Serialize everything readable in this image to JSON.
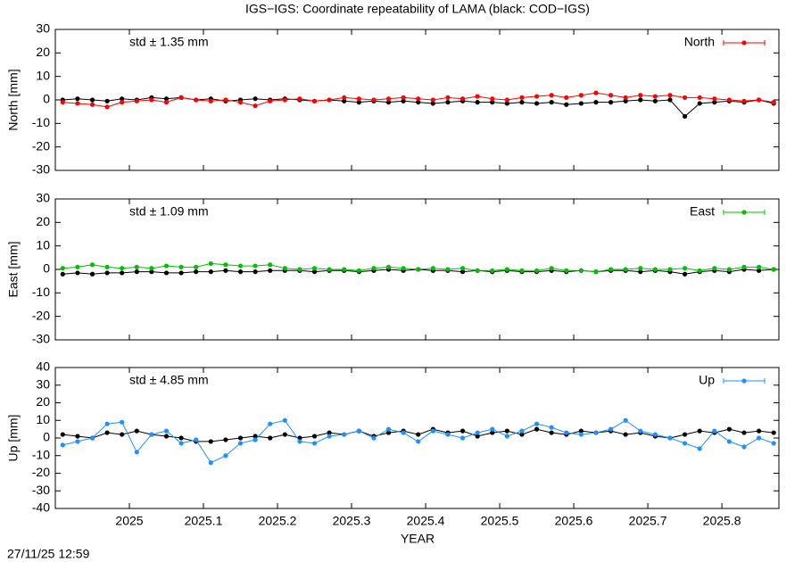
{
  "title": "IGS−IGS: Coordinate repeatability of LAMA (black: COD−IGS)",
  "timestamp": "27/11/25 12:59",
  "chart_data": [
    {
      "type": "line",
      "ylabel": "North [mm]",
      "annotation": "std ± 1.35 mm",
      "legend": "top right",
      "xlim": [
        2024.9,
        2025.877
      ],
      "xticks": [
        2025,
        2025.1,
        2025.2,
        2025.3,
        2025.4,
        2025.5,
        2025.6,
        2025.7,
        2025.8
      ],
      "ylim": [
        -30,
        30
      ],
      "yticks": [
        -30,
        -20,
        -10,
        0,
        10,
        20,
        30
      ],
      "x": [
        2024.91,
        2024.93,
        2024.95,
        2024.97,
        2024.99,
        2025.01,
        2025.03,
        2025.05,
        2025.07,
        2025.09,
        2025.11,
        2025.13,
        2025.15,
        2025.17,
        2025.19,
        2025.21,
        2025.23,
        2025.25,
        2025.27,
        2025.29,
        2025.31,
        2025.33,
        2025.35,
        2025.37,
        2025.39,
        2025.41,
        2025.43,
        2025.45,
        2025.47,
        2025.49,
        2025.51,
        2025.53,
        2025.55,
        2025.57,
        2025.59,
        2025.61,
        2025.63,
        2025.65,
        2025.67,
        2025.69,
        2025.71,
        2025.73,
        2025.75,
        2025.77,
        2025.79,
        2025.81,
        2025.83,
        2025.85,
        2025.87
      ],
      "series": [
        {
          "color": "#000000",
          "values": [
            0,
            0.5,
            0,
            -0.5,
            0.5,
            0,
            1,
            0.5,
            1,
            0,
            0.5,
            -0.5,
            0,
            0.5,
            0,
            0.5,
            0,
            -0.5,
            0,
            -0.5,
            -1,
            -0.5,
            -1,
            -0.5,
            -1,
            -1.5,
            -1,
            -0.5,
            -1,
            -1,
            -1.5,
            -1,
            -1.5,
            -1,
            -2,
            -1.5,
            -1,
            -1,
            -0.5,
            0,
            -0.5,
            0,
            -7,
            -1.5,
            -1,
            -0.5,
            -1,
            0,
            -1.5
          ]
        },
        {
          "name": "North",
          "color": "#ff0000",
          "values": [
            -1,
            -1.5,
            -2,
            -3,
            -1,
            -0.5,
            0,
            -1,
            1,
            0,
            -0.5,
            0,
            -1,
            -2.5,
            -0.5,
            0,
            0.5,
            -0.5,
            0,
            1,
            0.5,
            0,
            0.5,
            1,
            0.5,
            0,
            1,
            0.5,
            1.5,
            0.5,
            0,
            1,
            1.5,
            2,
            1,
            2,
            3,
            2,
            1,
            2,
            1.5,
            2,
            1,
            1,
            0.5,
            0,
            -0.5,
            0,
            -1
          ]
        }
      ]
    },
    {
      "type": "line",
      "ylabel": "East [mm]",
      "annotation": "std ± 1.09 mm",
      "legend": "top right",
      "xlim": [
        2024.9,
        2025.877
      ],
      "xticks": [
        2025,
        2025.1,
        2025.2,
        2025.3,
        2025.4,
        2025.5,
        2025.6,
        2025.7,
        2025.8
      ],
      "ylim": [
        -30,
        30
      ],
      "yticks": [
        -30,
        -20,
        -10,
        0,
        10,
        20,
        30
      ],
      "x": [
        2024.91,
        2024.93,
        2024.95,
        2024.97,
        2024.99,
        2025.01,
        2025.03,
        2025.05,
        2025.07,
        2025.09,
        2025.11,
        2025.13,
        2025.15,
        2025.17,
        2025.19,
        2025.21,
        2025.23,
        2025.25,
        2025.27,
        2025.29,
        2025.31,
        2025.33,
        2025.35,
        2025.37,
        2025.39,
        2025.41,
        2025.43,
        2025.45,
        2025.47,
        2025.49,
        2025.51,
        2025.53,
        2025.55,
        2025.57,
        2025.59,
        2025.61,
        2025.63,
        2025.65,
        2025.67,
        2025.69,
        2025.71,
        2025.73,
        2025.75,
        2025.77,
        2025.79,
        2025.81,
        2025.83,
        2025.85,
        2025.87
      ],
      "series": [
        {
          "color": "#000000",
          "values": [
            -2,
            -1.5,
            -2,
            -1.5,
            -1.5,
            -1,
            -1,
            -1.5,
            -1.5,
            -1,
            -1,
            -0.5,
            -1,
            -1,
            -0.5,
            -0.5,
            -0.5,
            -1,
            -0.5,
            -0.5,
            -1,
            -0.5,
            0,
            -0.5,
            0,
            -0.5,
            -0.5,
            -1,
            -0.5,
            -1,
            -0.5,
            -1,
            -1,
            -0.5,
            -1,
            -0.5,
            -1,
            -0.5,
            -0.5,
            -1,
            -0.5,
            -1,
            -2,
            -1,
            -0.5,
            -1,
            0,
            -0.5,
            0
          ]
        },
        {
          "name": "East",
          "color": "#00c000",
          "values": [
            0.5,
            1,
            2,
            1,
            0.5,
            1,
            0.5,
            1.5,
            1,
            1,
            2.5,
            2,
            1.5,
            1.5,
            2,
            0.5,
            0,
            0.5,
            0,
            0,
            -0.5,
            0.5,
            1,
            0.5,
            0,
            0.5,
            0,
            0.5,
            -0.5,
            -0.5,
            0,
            -0.5,
            -0.5,
            0.5,
            -0.5,
            -0.5,
            -1,
            0,
            0,
            0.5,
            0,
            0,
            0.5,
            -0.5,
            0.5,
            0,
            1,
            1,
            0
          ]
        }
      ]
    },
    {
      "type": "line",
      "ylabel": "Up [mm]",
      "xlabel": "YEAR",
      "annotation": "std ± 4.85 mm",
      "legend": "top right",
      "xlim": [
        2024.9,
        2025.877
      ],
      "xticks": [
        2025,
        2025.1,
        2025.2,
        2025.3,
        2025.4,
        2025.5,
        2025.6,
        2025.7,
        2025.8
      ],
      "ylim": [
        -40,
        40
      ],
      "yticks": [
        -40,
        -30,
        -20,
        -10,
        0,
        10,
        20,
        30,
        40
      ],
      "x": [
        2024.91,
        2024.93,
        2024.95,
        2024.97,
        2024.99,
        2025.01,
        2025.03,
        2025.05,
        2025.07,
        2025.09,
        2025.11,
        2025.13,
        2025.15,
        2025.17,
        2025.19,
        2025.21,
        2025.23,
        2025.25,
        2025.27,
        2025.29,
        2025.31,
        2025.33,
        2025.35,
        2025.37,
        2025.39,
        2025.41,
        2025.43,
        2025.45,
        2025.47,
        2025.49,
        2025.51,
        2025.53,
        2025.55,
        2025.57,
        2025.59,
        2025.61,
        2025.63,
        2025.65,
        2025.67,
        2025.69,
        2025.71,
        2025.73,
        2025.75,
        2025.77,
        2025.79,
        2025.81,
        2025.83,
        2025.85,
        2025.87
      ],
      "series": [
        {
          "color": "#000000",
          "values": [
            2,
            1,
            0,
            3,
            2,
            4,
            2,
            1,
            0,
            -2,
            -2,
            -1,
            0,
            1,
            0,
            2,
            0,
            1,
            3,
            2,
            4,
            1,
            3,
            4,
            2,
            5,
            3,
            4,
            1,
            3,
            4,
            2,
            5,
            3,
            2,
            4,
            3,
            4,
            2,
            3,
            1,
            0,
            2,
            4,
            3,
            5,
            3,
            4,
            3
          ]
        },
        {
          "name": "Up",
          "color": "#1e90ff",
          "values": [
            -4,
            -2,
            0,
            8,
            9,
            -8,
            2,
            4,
            -3,
            -1,
            -14,
            -10,
            -3,
            -1,
            8,
            10,
            -2,
            -3,
            1,
            2,
            4,
            0,
            5,
            3,
            -2,
            4,
            2,
            0,
            3,
            5,
            1,
            4,
            8,
            6,
            3,
            2,
            3,
            5,
            10,
            4,
            2,
            0,
            -3,
            -6,
            4,
            -2,
            -5,
            0,
            -3
          ]
        }
      ]
    }
  ]
}
